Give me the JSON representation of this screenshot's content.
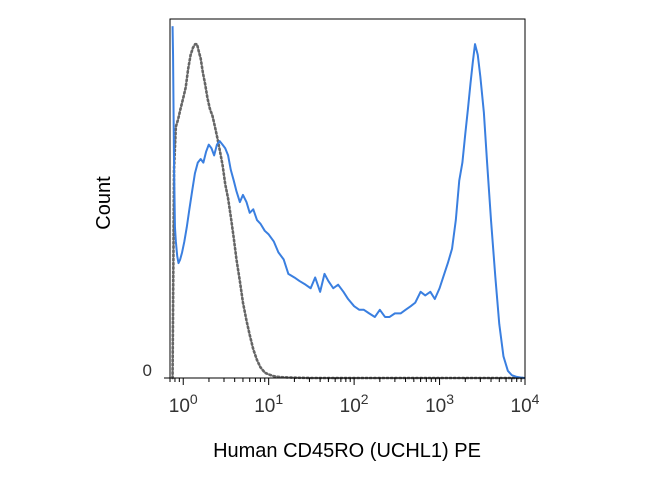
{
  "chart_data": {
    "type": "line",
    "xlabel": "Human CD45RO (UCHL1) PE",
    "ylabel": "Count",
    "xscale": "log",
    "xlim": [
      0.7,
      10000
    ],
    "ylim": [
      0,
      100
    ],
    "x_ticks": [
      {
        "value": 1,
        "base": "10",
        "exp": "0"
      },
      {
        "value": 10,
        "base": "10",
        "exp": "1"
      },
      {
        "value": 100,
        "base": "10",
        "exp": "2"
      },
      {
        "value": 1000,
        "base": "10",
        "exp": "3"
      },
      {
        "value": 10000,
        "base": "10",
        "exp": "4"
      }
    ],
    "y_ticks": [
      {
        "value": 0,
        "label": "0"
      }
    ],
    "grid": false,
    "legend": "none",
    "series": [
      {
        "color": "#3a7fe0",
        "style": "solid",
        "x": [
          0.75,
          0.76,
          0.78,
          0.8,
          0.82,
          0.85,
          0.88,
          0.92,
          0.97,
          1.03,
          1.1,
          1.18,
          1.27,
          1.37,
          1.48,
          1.6,
          1.72,
          1.85,
          1.99,
          2.14,
          2.3,
          2.48,
          2.67,
          2.88,
          3.1,
          3.35,
          3.6,
          3.9,
          4.2,
          4.6,
          5.0,
          5.5,
          6.0,
          6.6,
          7.3,
          8.0,
          9.0,
          10,
          11.5,
          13,
          15,
          17,
          20,
          23,
          27,
          31,
          35,
          40,
          45,
          50,
          57,
          65,
          75,
          85,
          100,
          115,
          130,
          150,
          175,
          200,
          230,
          260,
          300,
          350,
          400,
          460,
          520,
          600,
          680,
          780,
          880,
          1000,
          1100,
          1250,
          1400,
          1550,
          1700,
          1850,
          2000,
          2150,
          2300,
          2450,
          2600,
          2800,
          3000,
          3300,
          3600,
          4000,
          4500,
          5000,
          5600,
          6300,
          7000,
          8000,
          9000,
          10000
        ],
        "y": [
          98,
          90,
          60,
          42,
          38,
          34,
          32,
          33,
          35,
          38,
          42,
          47,
          52,
          57,
          60,
          61,
          60,
          63,
          65,
          64,
          62,
          65,
          66,
          65,
          64,
          62,
          58,
          55,
          52,
          49,
          51,
          49,
          46,
          47,
          44,
          43,
          41,
          40,
          38,
          35,
          33,
          29,
          28,
          27,
          26,
          25,
          28,
          24,
          29,
          27,
          25,
          26,
          24,
          22,
          20,
          19,
          19,
          18,
          17,
          19,
          17,
          17,
          18,
          18,
          19,
          20,
          21,
          24,
          23,
          24,
          22,
          25,
          28,
          32,
          36,
          44,
          55,
          60,
          68,
          75,
          82,
          88,
          93,
          90,
          84,
          74,
          60,
          44,
          28,
          15,
          6,
          2,
          0.8,
          0.3,
          0.1,
          0
        ],
        "values": [
          98,
          90,
          60,
          42,
          38,
          34,
          32,
          33,
          35,
          38,
          42,
          47,
          52,
          57,
          60,
          61,
          60,
          63,
          65,
          64,
          62,
          65,
          66,
          65,
          64,
          62,
          58,
          55,
          52,
          49,
          51,
          49,
          46,
          47,
          44,
          43,
          41,
          40,
          38,
          35,
          33,
          29,
          28,
          27,
          26,
          25,
          28,
          24,
          29,
          27,
          25,
          26,
          24,
          22,
          20,
          19,
          19,
          18,
          17,
          19,
          17,
          17,
          18,
          18,
          19,
          20,
          21,
          24,
          23,
          24,
          22,
          25,
          28,
          32,
          36,
          44,
          55,
          60,
          68,
          75,
          82,
          88,
          93,
          90,
          84,
          74,
          60,
          44,
          28,
          15,
          6,
          2,
          0.8,
          0.3,
          0.1,
          0
        ]
      },
      {
        "color": "#666666",
        "style": "dotted",
        "x": [
          0.75,
          0.78,
          0.82,
          0.87,
          0.93,
          1.0,
          1.07,
          1.14,
          1.22,
          1.3,
          1.38,
          1.45,
          1.52,
          1.6,
          1.7,
          1.8,
          1.92,
          2.05,
          2.2,
          2.35,
          2.5,
          2.7,
          2.9,
          3.1,
          3.35,
          3.6,
          3.9,
          4.2,
          4.6,
          5.0,
          5.5,
          6.0,
          6.6,
          7.3,
          8.0,
          9.0,
          10,
          11.5,
          13,
          15,
          20,
          30,
          50,
          100,
          300,
          1000,
          10000
        ],
        "y": [
          0,
          58,
          70,
          72,
          75,
          78,
          81,
          86,
          90,
          92,
          93,
          93,
          91,
          89,
          85,
          82,
          78,
          75,
          73,
          70,
          67,
          63,
          59,
          54,
          50,
          45,
          39,
          33,
          27,
          21,
          16,
          12,
          8,
          5,
          3,
          1.5,
          1,
          0.5,
          0.3,
          0.2,
          0.1,
          0,
          0,
          0,
          0,
          0,
          0
        ],
        "values": [
          0,
          58,
          70,
          72,
          75,
          78,
          81,
          86,
          90,
          92,
          93,
          93,
          91,
          89,
          85,
          82,
          78,
          75,
          73,
          70,
          67,
          63,
          59,
          54,
          50,
          45,
          39,
          33,
          27,
          21,
          16,
          12,
          8,
          5,
          3,
          1.5,
          1,
          0.5,
          0.3,
          0.2,
          0.1,
          0,
          0,
          0,
          0,
          0,
          0
        ]
      }
    ]
  }
}
